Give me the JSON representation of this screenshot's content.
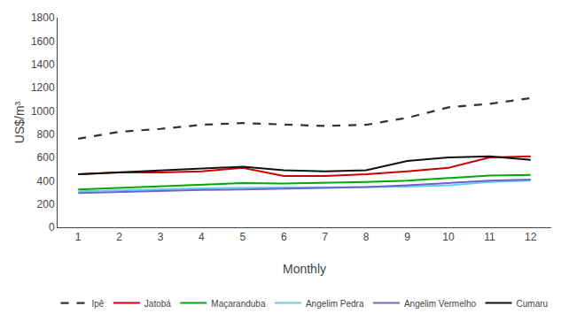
{
  "chart_data": {
    "type": "line",
    "x": [
      1,
      2,
      3,
      4,
      5,
      6,
      7,
      8,
      9,
      10,
      11,
      12
    ],
    "series": [
      {
        "name": "Ipê",
        "color": "#333333",
        "line_style": "dashed",
        "values": [
          760,
          820,
          845,
          880,
          895,
          880,
          870,
          880,
          940,
          1030,
          1060,
          1110
        ]
      },
      {
        "name": "Jatobá",
        "color": "#cc0000",
        "line_style": "solid",
        "values": [
          455,
          470,
          470,
          480,
          510,
          440,
          440,
          455,
          480,
          510,
          600,
          610
        ]
      },
      {
        "name": "Maçaranduba",
        "color": "#00aa00",
        "line_style": "solid",
        "values": [
          325,
          340,
          355,
          370,
          380,
          375,
          380,
          390,
          400,
          420,
          445,
          450
        ]
      },
      {
        "name": "Angelim Pedra",
        "color": "#66ccee",
        "line_style": "solid",
        "values": [
          310,
          320,
          325,
          335,
          340,
          340,
          340,
          345,
          350,
          360,
          390,
          400
        ]
      },
      {
        "name": "Angelim Vermelho",
        "color": "#6666cc",
        "line_style": "solid",
        "values": [
          295,
          305,
          315,
          320,
          325,
          330,
          335,
          345,
          360,
          380,
          400,
          410
        ]
      },
      {
        "name": "Cumaru",
        "color": "#111111",
        "line_style": "solid",
        "values": [
          455,
          470,
          490,
          500,
          520,
          490,
          480,
          490,
          570,
          600,
          610,
          580
        ]
      }
    ],
    "xlabel": "Monthly",
    "ylabel": "US$/m³",
    "xlim": [
      0.5,
      12.5
    ],
    "xticks": [
      1,
      2,
      3,
      4,
      5,
      6,
      7,
      8,
      9,
      10,
      11,
      12
    ],
    "ylim": [
      0,
      1800
    ],
    "yticks": [
      0,
      200,
      400,
      600,
      800,
      1000,
      1200,
      1400,
      1600,
      1800
    ],
    "grid": false,
    "legend": "bottom"
  }
}
